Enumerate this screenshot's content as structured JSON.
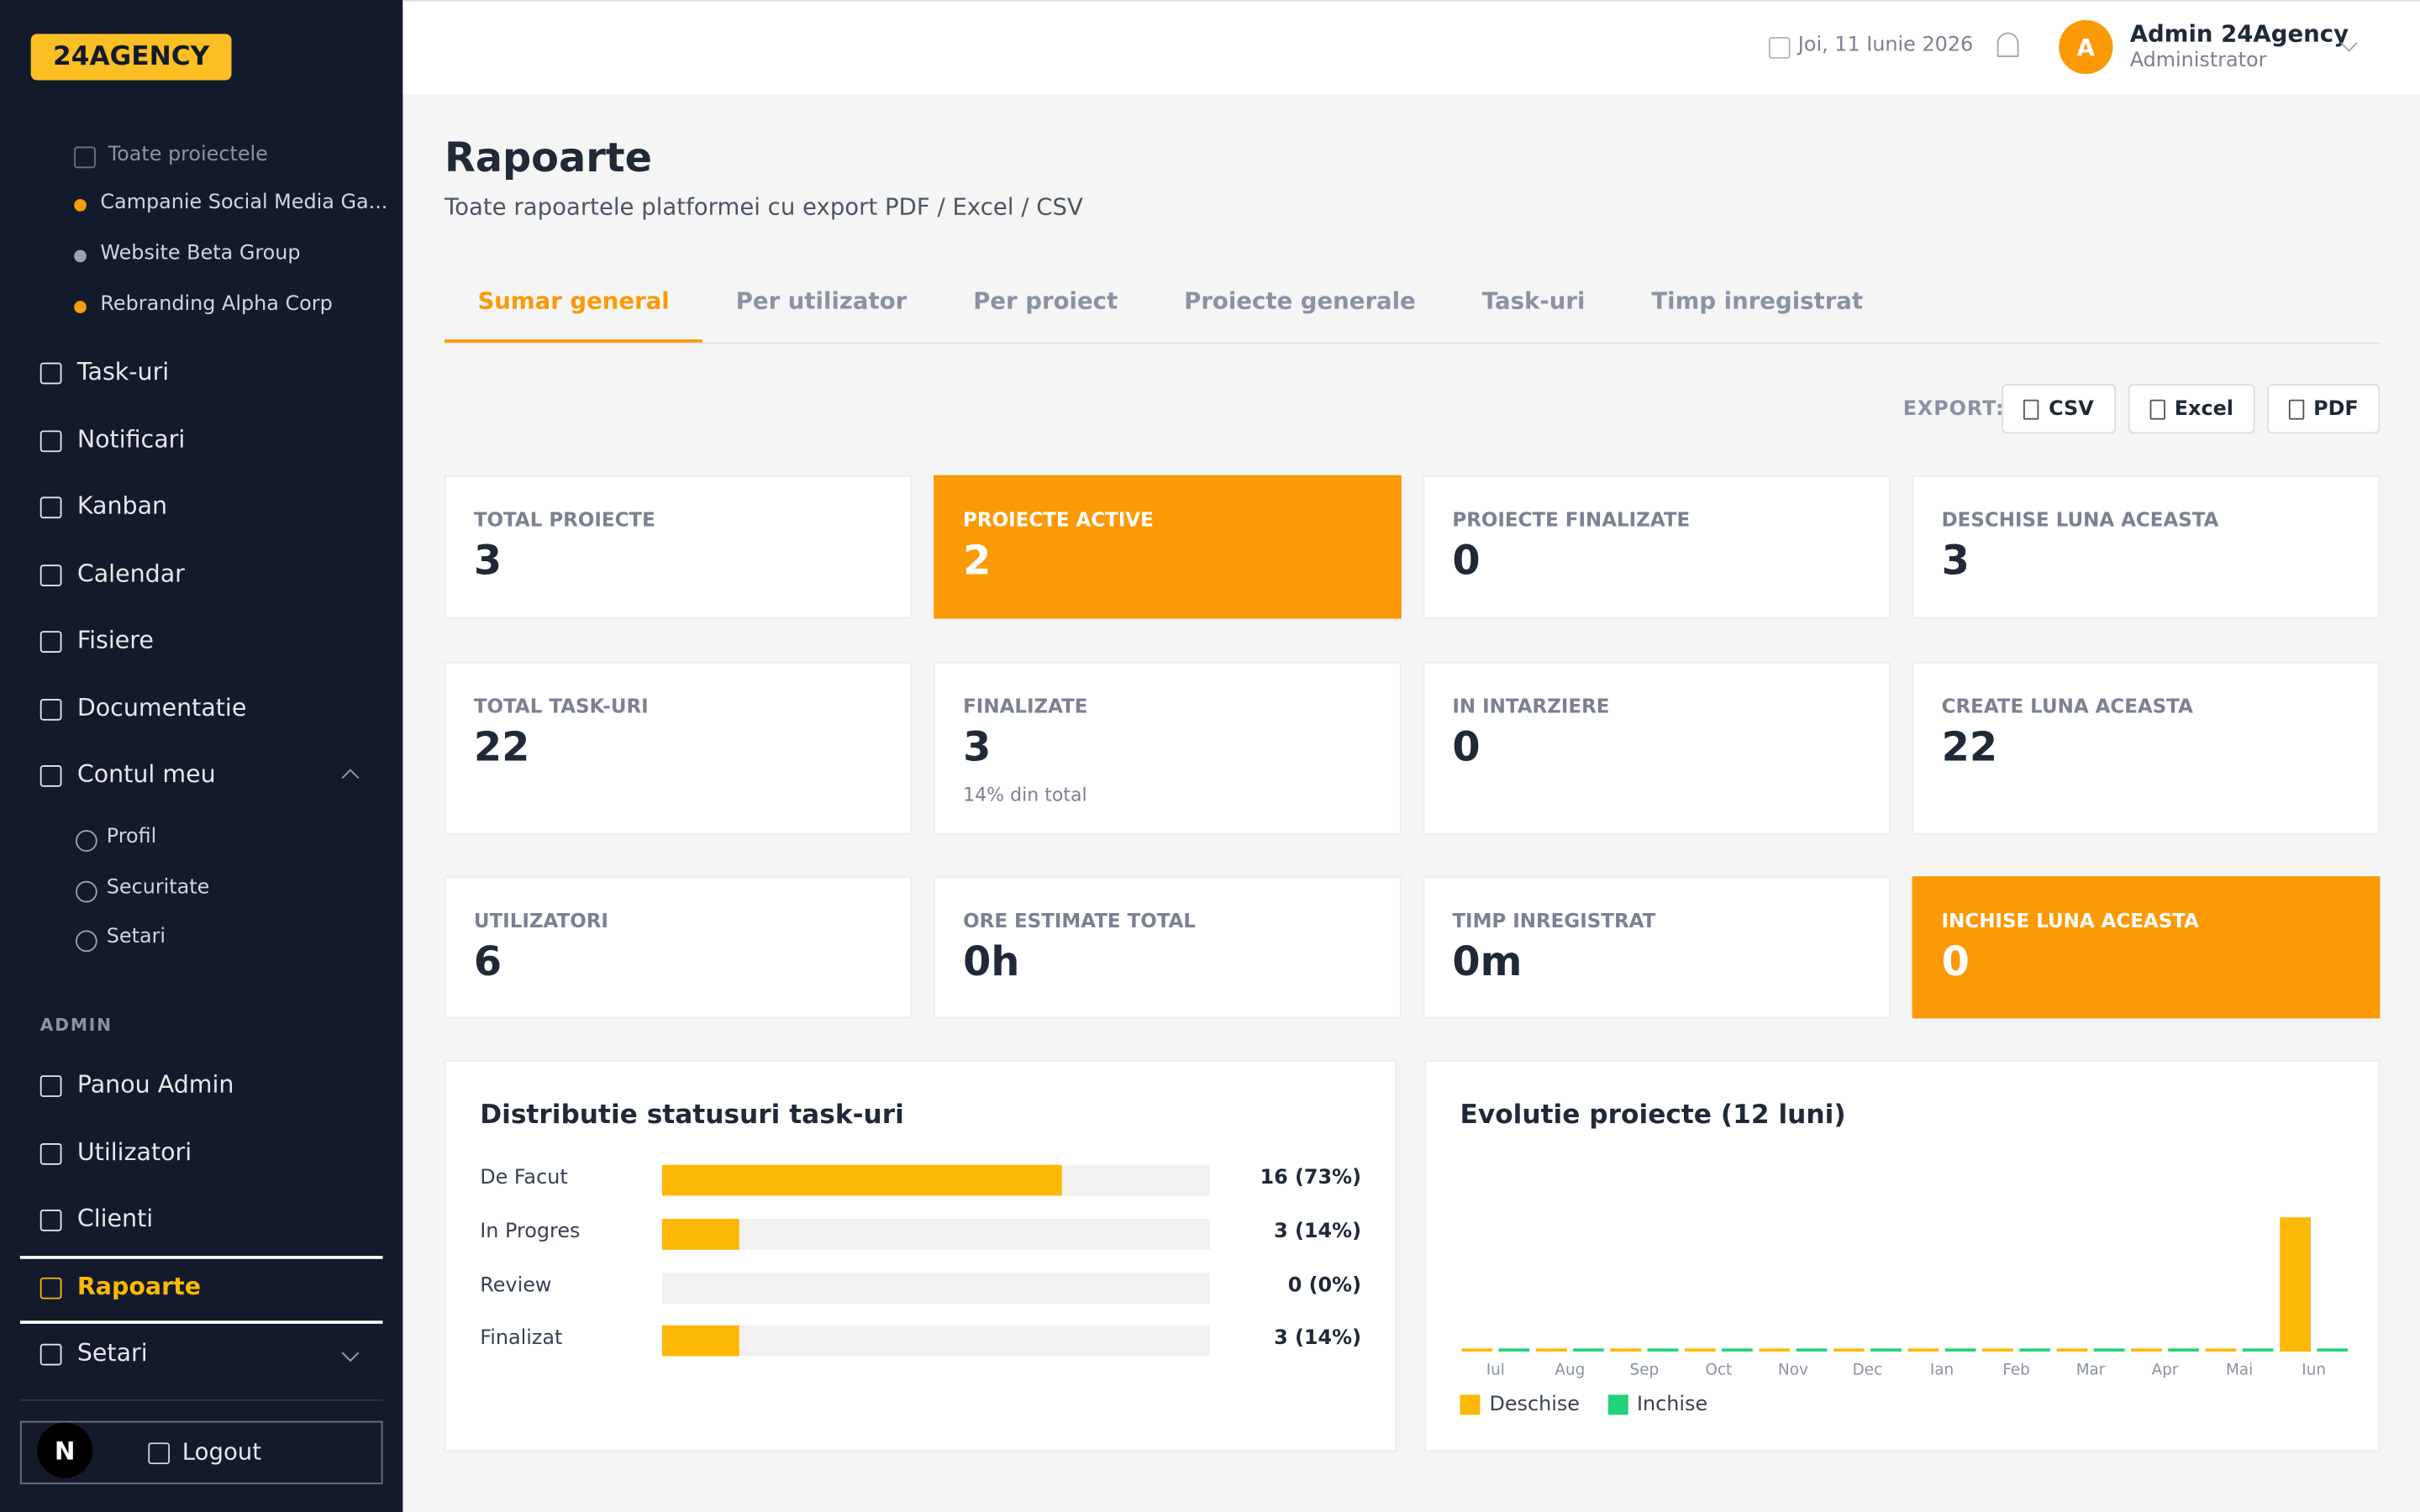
{
  "sidebar": {
    "logo": "24AGENCY",
    "all_projects": "Toate proiectele",
    "projects": [
      {
        "label": "Campanie Social Media Ga...",
        "color": "#f59e0b"
      },
      {
        "label": "Website Beta Group",
        "color": "#9ca3af"
      },
      {
        "label": "Rebranding Alpha Corp",
        "color": "#f59e0b"
      }
    ],
    "nav": [
      "Task-uri",
      "Notificari",
      "Kanban",
      "Calendar",
      "Fisiere",
      "Documentatie"
    ],
    "account": {
      "label": "Contul meu",
      "items": [
        "Profil",
        "Securitate",
        "Setari"
      ]
    },
    "admin_heading": "ADMIN",
    "admin_nav": [
      "Panou Admin",
      "Utilizatori",
      "Clienti",
      "Rapoarte",
      "Setari"
    ],
    "active_admin_index": 3,
    "badge": "N",
    "logout": "Logout"
  },
  "header": {
    "date": "Joi, 11 Iunie 2026",
    "avatar": "A",
    "user_name": "Admin 24Agency",
    "user_role": "Administrator"
  },
  "page": {
    "title": "Rapoarte",
    "subtitle": "Toate rapoartele platformei cu export PDF / Excel / CSV",
    "tabs": [
      "Sumar general",
      "Per utilizator",
      "Per proiect",
      "Proiecte generale",
      "Task-uri",
      "Timp inregistrat"
    ],
    "active_tab": 0,
    "export_label": "EXPORT:",
    "export_buttons": [
      "CSV",
      "Excel",
      "PDF"
    ]
  },
  "stats": [
    {
      "label": "TOTAL PROIECTE",
      "value": 3,
      "highlight": false
    },
    {
      "label": "PROIECTE ACTIVE",
      "value": 2,
      "highlight": true
    },
    {
      "label": "PROIECTE FINALIZATE",
      "value": 0,
      "highlight": false
    },
    {
      "label": "DESCHISE LUNA ACEASTA",
      "value": 3,
      "highlight": false
    },
    {
      "label": "TOTAL TASK-URI",
      "value": 22,
      "highlight": false
    },
    {
      "label": "FINALIZATE",
      "value": 3,
      "note": "14% din total",
      "highlight": false
    },
    {
      "label": "IN INTARZIERE",
      "value": 0,
      "highlight": false
    },
    {
      "label": "CREATE LUNA ACEASTA",
      "value": 22,
      "highlight": false
    },
    {
      "label": "UTILIZATORI",
      "value": 6,
      "highlight": false
    },
    {
      "label": "ORE ESTIMATE TOTAL",
      "value": "0h",
      "highlight": false
    },
    {
      "label": "TIMP INREGISTRAT",
      "value": "0m",
      "highlight": false
    },
    {
      "label": "INCHISE LUNA ACEASTA",
      "value": 0,
      "highlight": true
    }
  ],
  "distribution": {
    "title": "Distributie statusuri task-uri",
    "color": "#fbb806",
    "rows": [
      {
        "label": "De Facut",
        "percent": 73,
        "value_label": "16 (73%)"
      },
      {
        "label": "In Progres",
        "percent": 14,
        "value_label": "3 (14%)"
      },
      {
        "label": "Review",
        "percent": 0,
        "value_label": "0 (0%)"
      },
      {
        "label": "Finalizat",
        "percent": 14,
        "value_label": "3 (14%)"
      }
    ]
  },
  "evolution": {
    "title": "Evolutie proiecte (12 luni)",
    "type": "bar",
    "categories": [
      "Iul",
      "Aug",
      "Sep",
      "Oct",
      "Nov",
      "Dec",
      "Ian",
      "Feb",
      "Mar",
      "Apr",
      "Mai",
      "Iun"
    ],
    "series": [
      {
        "name": "Deschise",
        "color": "#fbb806",
        "values": [
          0,
          0,
          0,
          0,
          0,
          0,
          0,
          0,
          0,
          0,
          0,
          3
        ]
      },
      {
        "name": "Inchise",
        "color": "#22d37a",
        "values": [
          0,
          0,
          0,
          0,
          0,
          0,
          0,
          0,
          0,
          0,
          0,
          0
        ]
      }
    ]
  }
}
